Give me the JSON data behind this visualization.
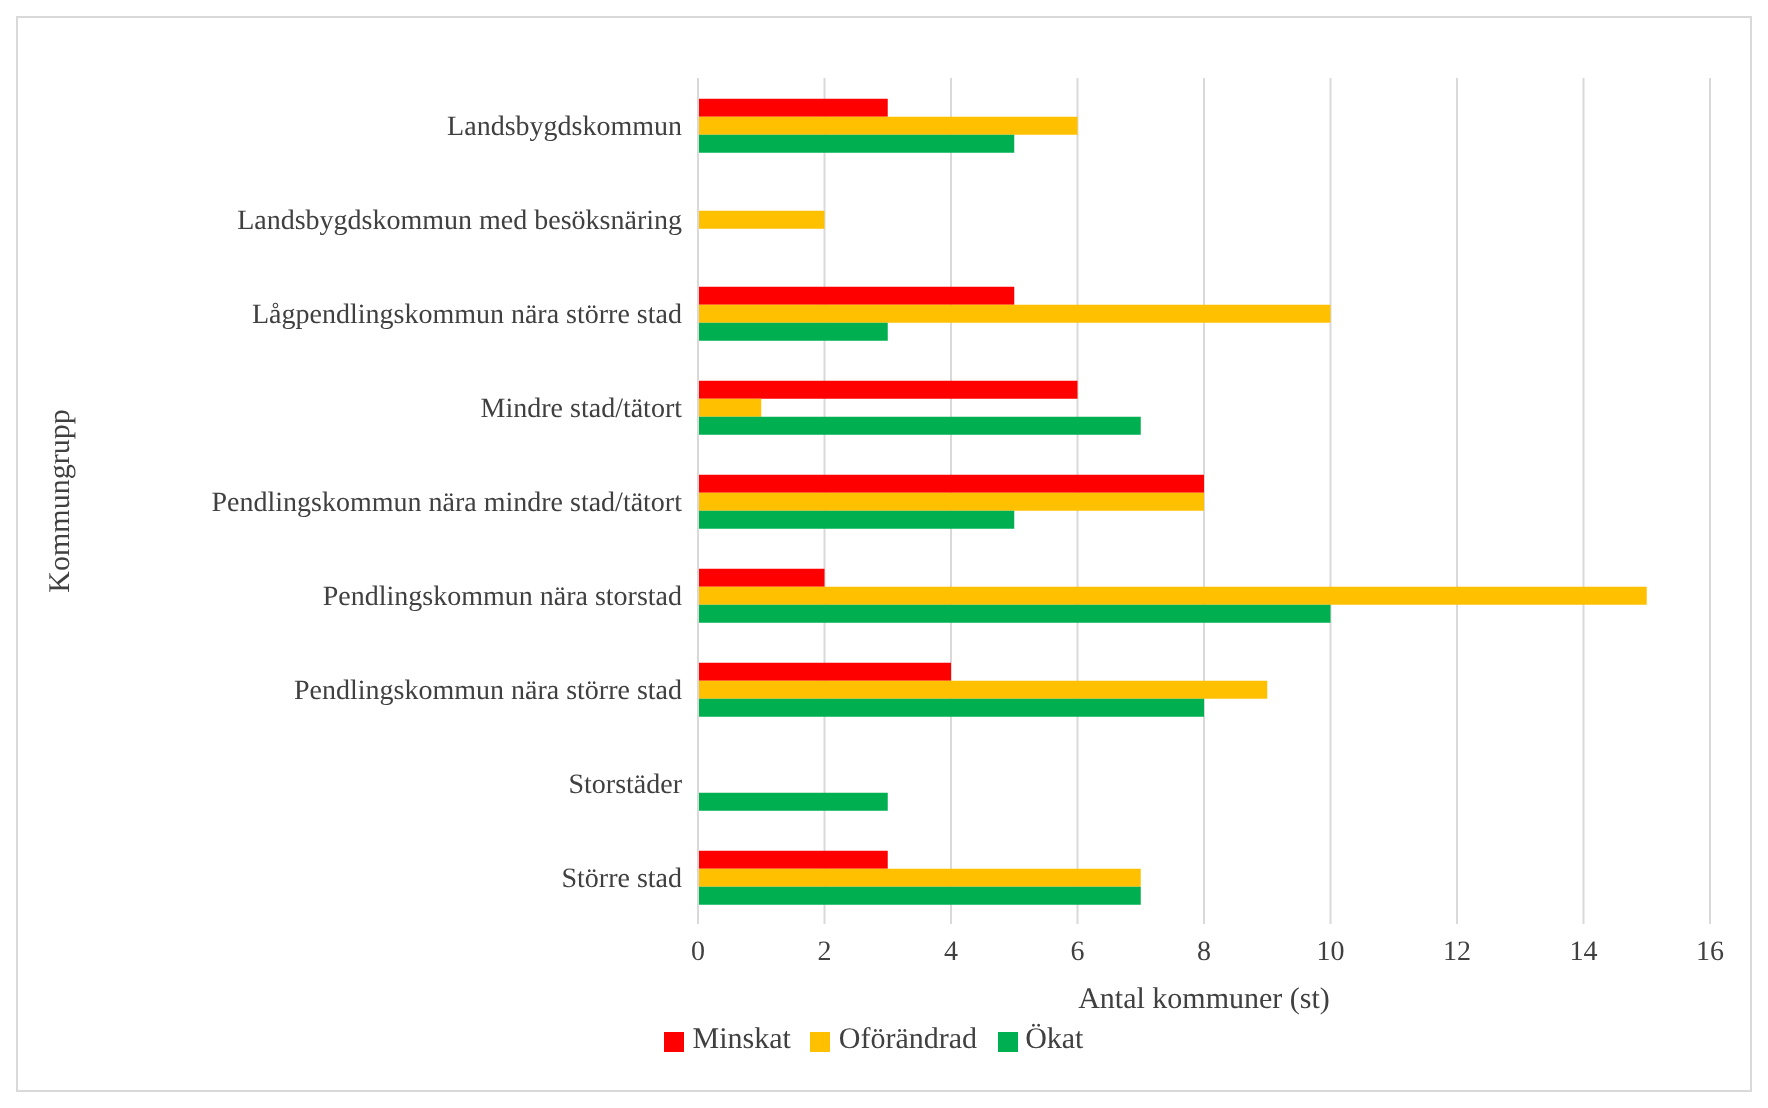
{
  "chart_data": {
    "type": "bar",
    "orientation": "horizontal",
    "xlabel": "Antal kommuner (st)",
    "ylabel": "Kommungrupp",
    "categories": [
      "Landsbygdskommun",
      "Landsbygdskommun med besöksnäring",
      "Lågpendlingskommun nära större stad",
      "Mindre stad/tätort",
      "Pendlingskommun nära mindre stad/tätort",
      "Pendlingskommun nära storstad",
      "Pendlingskommun nära större stad",
      "Storstäder",
      "Större stad"
    ],
    "series": [
      {
        "name": "Minskat",
        "color": "#ff0000",
        "values": [
          3,
          0,
          5,
          6,
          8,
          2,
          4,
          0,
          3
        ]
      },
      {
        "name": "Oförändrad",
        "color": "#ffc000",
        "values": [
          6,
          2,
          10,
          1,
          8,
          15,
          9,
          0,
          7
        ]
      },
      {
        "name": "Ökat",
        "color": "#00b050",
        "values": [
          5,
          0,
          3,
          7,
          5,
          10,
          8,
          3,
          7
        ]
      }
    ],
    "xlim": [
      0,
      16
    ],
    "xticks": [
      0,
      2,
      4,
      6,
      8,
      10,
      12,
      14,
      16
    ],
    "grid": "x",
    "legend": "bottom"
  }
}
